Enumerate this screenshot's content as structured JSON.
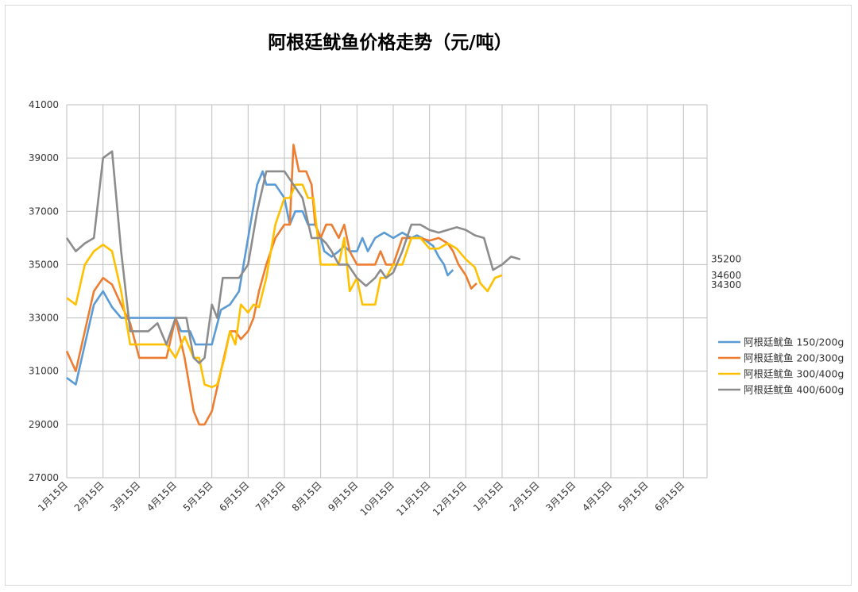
{
  "chart_data": {
    "type": "line",
    "title": "阿根廷鱿鱼价格走势（元/吨）",
    "xlabel": "",
    "ylabel": "",
    "ylim": [
      27000,
      41000
    ],
    "yticks": [
      "27000",
      "29000",
      "31000",
      "33000",
      "35000",
      "37000",
      "39000",
      "41000"
    ],
    "x_tick_labels": [
      "1月15日",
      "2月15日",
      "3月15日",
      "4月15日",
      "5月15日",
      "6月15日",
      "7月15日",
      "8月15日",
      "9月15日",
      "10月15日",
      "11月15日",
      "12月15日",
      "1月15日",
      "2月15日",
      "3月15日",
      "4月15日",
      "5月15日",
      "6月15日"
    ],
    "grid": true,
    "legend_position": "right",
    "end_labels": [
      "35200",
      "34600",
      "34300"
    ],
    "series": [
      {
        "name": "阿根廷鱿鱼 150/200g",
        "color": "#5B9BD5",
        "points": [
          [
            0,
            30750
          ],
          [
            0.5,
            30500
          ],
          [
            1,
            32000
          ],
          [
            1.5,
            33500
          ],
          [
            2,
            34000
          ],
          [
            2.5,
            33400
          ],
          [
            3,
            33000
          ],
          [
            3.5,
            33000
          ],
          [
            4,
            33000
          ],
          [
            4.5,
            33000
          ],
          [
            5,
            33000
          ],
          [
            5.5,
            33000
          ],
          [
            6,
            33000
          ],
          [
            6.3,
            32500
          ],
          [
            6.8,
            32500
          ],
          [
            7.1,
            32000
          ],
          [
            7.6,
            32000
          ],
          [
            8,
            32000
          ],
          [
            8.5,
            33300
          ],
          [
            9,
            33500
          ],
          [
            9.5,
            34000
          ],
          [
            10,
            36000
          ],
          [
            10.5,
            38000
          ],
          [
            10.8,
            38500
          ],
          [
            11,
            38000
          ],
          [
            11.5,
            38000
          ],
          [
            12,
            37500
          ],
          [
            12.3,
            36500
          ],
          [
            12.6,
            37000
          ],
          [
            13,
            37000
          ],
          [
            13.3,
            36500
          ],
          [
            13.7,
            36500
          ],
          [
            14,
            36000
          ],
          [
            14.2,
            35500
          ],
          [
            14.6,
            35300
          ],
          [
            15,
            35500
          ],
          [
            15.3,
            35700
          ],
          [
            15.6,
            35500
          ],
          [
            16,
            35500
          ],
          [
            16.3,
            36000
          ],
          [
            16.6,
            35500
          ],
          [
            17,
            36000
          ],
          [
            17.5,
            36200
          ],
          [
            18,
            36000
          ],
          [
            18.5,
            36200
          ],
          [
            19,
            36000
          ],
          [
            19.3,
            36100
          ],
          [
            19.6,
            36000
          ],
          [
            20,
            35800
          ],
          [
            20.2,
            35700
          ],
          [
            20.5,
            35300
          ],
          [
            20.8,
            35000
          ],
          [
            21,
            34600
          ],
          [
            21.3,
            34800
          ]
        ]
      },
      {
        "name": "阿根廷鱿鱼 200/300g",
        "color": "#ED7D31",
        "points": [
          [
            0,
            31750
          ],
          [
            0.5,
            31000
          ],
          [
            1,
            32500
          ],
          [
            1.5,
            34000
          ],
          [
            2,
            34500
          ],
          [
            2.5,
            34250
          ],
          [
            3,
            33500
          ],
          [
            3.5,
            32800
          ],
          [
            4,
            31500
          ],
          [
            4.5,
            31500
          ],
          [
            5,
            31500
          ],
          [
            5.5,
            31500
          ],
          [
            6,
            33000
          ],
          [
            6.5,
            31500
          ],
          [
            7,
            29500
          ],
          [
            7.3,
            29000
          ],
          [
            7.6,
            29000
          ],
          [
            8,
            29500
          ],
          [
            8.5,
            31000
          ],
          [
            9,
            32500
          ],
          [
            9.3,
            32500
          ],
          [
            9.6,
            32200
          ],
          [
            10,
            32500
          ],
          [
            10.3,
            33000
          ],
          [
            10.6,
            34000
          ],
          [
            11,
            35000
          ],
          [
            11.5,
            36000
          ],
          [
            12,
            36500
          ],
          [
            12.3,
            36500
          ],
          [
            12.5,
            39500
          ],
          [
            12.8,
            38500
          ],
          [
            13.2,
            38500
          ],
          [
            13.5,
            38000
          ],
          [
            13.7,
            36500
          ],
          [
            14,
            36000
          ],
          [
            14.3,
            36500
          ],
          [
            14.6,
            36500
          ],
          [
            15,
            36000
          ],
          [
            15.3,
            36500
          ],
          [
            15.6,
            35500
          ],
          [
            16,
            35000
          ],
          [
            16.5,
            35000
          ],
          [
            17,
            35000
          ],
          [
            17.3,
            35500
          ],
          [
            17.6,
            35000
          ],
          [
            18,
            35000
          ],
          [
            18.5,
            36000
          ],
          [
            19,
            36000
          ],
          [
            19.5,
            36000
          ],
          [
            20,
            35900
          ],
          [
            20.5,
            36000
          ],
          [
            21,
            35800
          ],
          [
            21.3,
            35500
          ],
          [
            21.6,
            35000
          ],
          [
            22,
            34600
          ],
          [
            22.3,
            34100
          ],
          [
            22.6,
            34300
          ]
        ]
      },
      {
        "name": "阿根廷鱿鱼 300/400g",
        "color": "#FFC000",
        "points": [
          [
            0,
            33750
          ],
          [
            0.5,
            33500
          ],
          [
            1,
            35000
          ],
          [
            1.5,
            35500
          ],
          [
            2,
            35750
          ],
          [
            2.5,
            35500
          ],
          [
            3,
            34000
          ],
          [
            3.5,
            32000
          ],
          [
            4,
            32000
          ],
          [
            4.5,
            32000
          ],
          [
            5,
            32000
          ],
          [
            5.5,
            32000
          ],
          [
            6,
            31500
          ],
          [
            6.5,
            32300
          ],
          [
            7,
            31500
          ],
          [
            7.3,
            31500
          ],
          [
            7.6,
            30500
          ],
          [
            8,
            30400
          ],
          [
            8.3,
            30500
          ],
          [
            8.7,
            31500
          ],
          [
            9,
            32500
          ],
          [
            9.3,
            32000
          ],
          [
            9.6,
            33500
          ],
          [
            10,
            33200
          ],
          [
            10.3,
            33500
          ],
          [
            10.6,
            33400
          ],
          [
            11,
            34500
          ],
          [
            11.5,
            36500
          ],
          [
            12,
            37500
          ],
          [
            12.3,
            37500
          ],
          [
            12.6,
            38000
          ],
          [
            13,
            38000
          ],
          [
            13.3,
            37500
          ],
          [
            13.6,
            37500
          ],
          [
            14,
            35000
          ],
          [
            14.5,
            35000
          ],
          [
            15,
            35000
          ],
          [
            15.3,
            36000
          ],
          [
            15.6,
            34000
          ],
          [
            16,
            34500
          ],
          [
            16.3,
            33500
          ],
          [
            16.6,
            33500
          ],
          [
            17,
            33500
          ],
          [
            17.3,
            34500
          ],
          [
            17.6,
            34500
          ],
          [
            18,
            35000
          ],
          [
            18.5,
            35000
          ],
          [
            19,
            36000
          ],
          [
            19.5,
            36000
          ],
          [
            20,
            35600
          ],
          [
            20.5,
            35600
          ],
          [
            21,
            35800
          ],
          [
            21.5,
            35600
          ],
          [
            22,
            35200
          ],
          [
            22.5,
            34900
          ],
          [
            22.8,
            34300
          ],
          [
            23.2,
            34000
          ],
          [
            23.6,
            34500
          ],
          [
            24,
            34600
          ]
        ]
      },
      {
        "name": "阿根廷鱿鱼 400/600g",
        "color": "#8C8C8C",
        "points": [
          [
            0,
            36000
          ],
          [
            0.5,
            35500
          ],
          [
            1,
            35800
          ],
          [
            1.5,
            36000
          ],
          [
            2,
            39000
          ],
          [
            2.5,
            39250
          ],
          [
            3,
            35500
          ],
          [
            3.5,
            32500
          ],
          [
            4,
            32500
          ],
          [
            4.5,
            32500
          ],
          [
            5,
            32800
          ],
          [
            5.5,
            32000
          ],
          [
            6,
            33000
          ],
          [
            6.3,
            33000
          ],
          [
            6.6,
            33000
          ],
          [
            7,
            31500
          ],
          [
            7.3,
            31300
          ],
          [
            7.6,
            31500
          ],
          [
            8,
            33500
          ],
          [
            8.3,
            33000
          ],
          [
            8.6,
            34500
          ],
          [
            9,
            34500
          ],
          [
            9.5,
            34500
          ],
          [
            10,
            35000
          ],
          [
            10.5,
            37000
          ],
          [
            11,
            38500
          ],
          [
            11.5,
            38500
          ],
          [
            12,
            38500
          ],
          [
            12.5,
            38000
          ],
          [
            13,
            37500
          ],
          [
            13.5,
            36000
          ],
          [
            14,
            36000
          ],
          [
            14.3,
            35800
          ],
          [
            14.6,
            35500
          ],
          [
            15,
            35000
          ],
          [
            15.5,
            35000
          ],
          [
            16,
            34500
          ],
          [
            16.5,
            34200
          ],
          [
            17,
            34500
          ],
          [
            17.3,
            34800
          ],
          [
            17.6,
            34500
          ],
          [
            18,
            34700
          ],
          [
            18.5,
            35500
          ],
          [
            19,
            36500
          ],
          [
            19.5,
            36500
          ],
          [
            20,
            36300
          ],
          [
            20.5,
            36200
          ],
          [
            21,
            36300
          ],
          [
            21.5,
            36400
          ],
          [
            22,
            36300
          ],
          [
            22.5,
            36100
          ],
          [
            23,
            36000
          ],
          [
            23.5,
            34800
          ],
          [
            24,
            35000
          ],
          [
            24.5,
            35300
          ],
          [
            25,
            35200
          ]
        ]
      }
    ]
  }
}
